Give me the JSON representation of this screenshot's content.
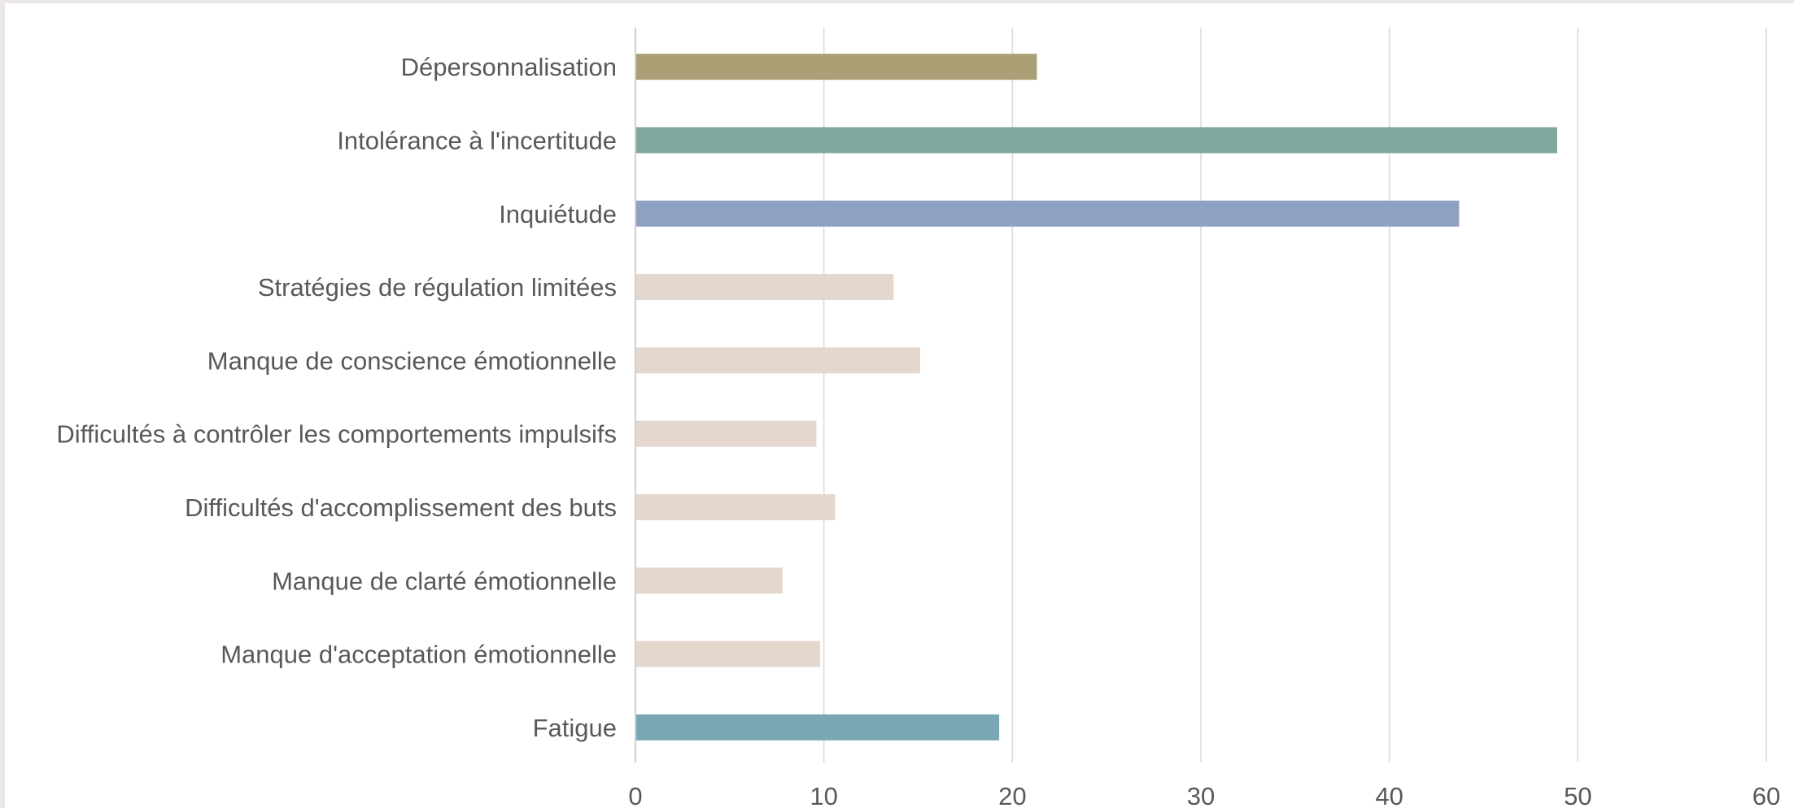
{
  "chart_data": {
    "type": "bar",
    "orientation": "horizontal",
    "categories": [
      "Dépersonnalisation",
      "Intolérance à l'incertitude",
      "Inquiétude",
      "Stratégies de régulation limitées",
      "Manque de conscience émotionnelle",
      "Difficultés à contrôler les comportements impulsifs",
      "Difficultés d'accomplissement des buts",
      "Manque de clarté émotionnelle",
      "Manque d'acceptation émotionnelle",
      "Fatigue"
    ],
    "values": [
      21.3,
      48.9,
      43.7,
      13.7,
      15.1,
      9.6,
      10.6,
      7.8,
      9.8,
      19.3
    ],
    "bar_colors": [
      "#ab9f75",
      "#7fa99f",
      "#8fa1c3",
      "#e4d7ce",
      "#e4d7ce",
      "#e4d7ce",
      "#e4d7ce",
      "#e4d7ce",
      "#e4d7ce",
      "#79a8b4"
    ],
    "xlim": [
      0,
      60
    ],
    "xticks": [
      "0",
      "10",
      "20",
      "30",
      "40",
      "50",
      "60"
    ],
    "grid": "vertical",
    "title": "",
    "xlabel": "",
    "ylabel": ""
  },
  "colors": {
    "gridline": "#d9d9d9",
    "axis": "#bfbfbf",
    "text": "#595959",
    "background": "#ffffff",
    "frame": "#ece7e7"
  }
}
